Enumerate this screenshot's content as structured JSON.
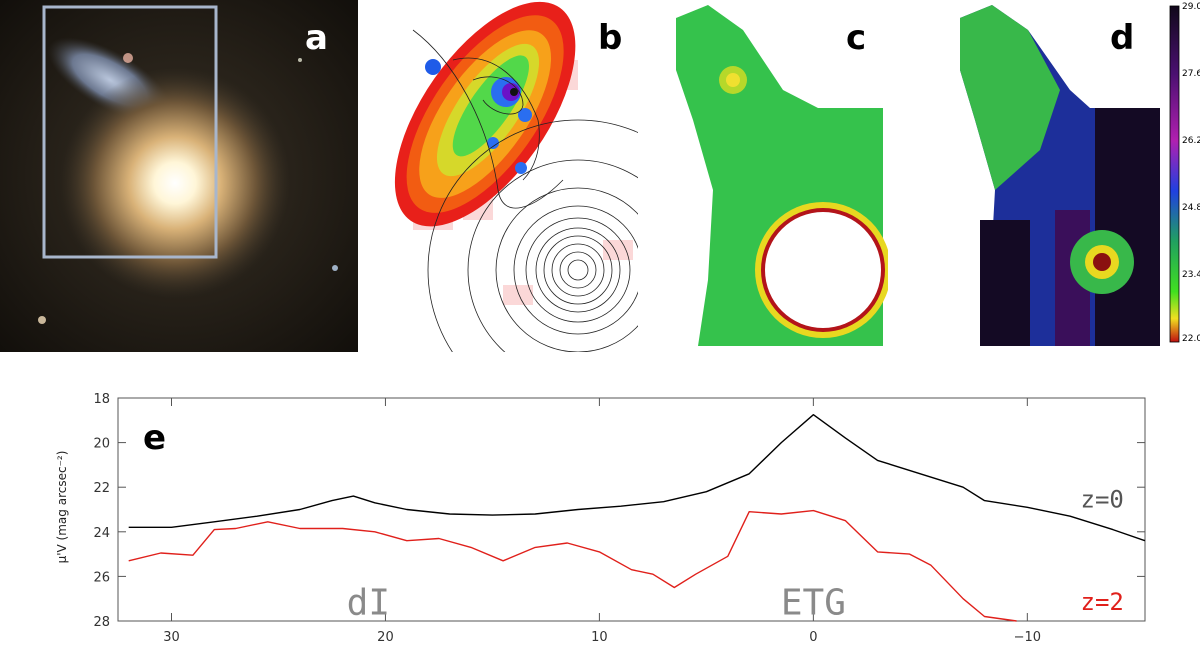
{
  "panels": {
    "a": {
      "letter": "a"
    },
    "b": {
      "letter": "b"
    },
    "c": {
      "letter": "c"
    },
    "d": {
      "letter": "d"
    }
  },
  "colorbar": {
    "ticks": [
      "29.0",
      "27.6",
      "26.2",
      "24.8",
      "23.4",
      "22.0"
    ],
    "range": [
      22.0,
      29.0
    ]
  },
  "colors": {
    "z0_line": "#000000",
    "z2_line": "#e0201b",
    "annotation": "#8a8a8a"
  },
  "chart_data": {
    "type": "line",
    "panel_letter": "e",
    "ylabel": "μ'V (mag arcsec⁻²)",
    "xlim": [
      32.5,
      -15.5
    ],
    "ylim": [
      28,
      18
    ],
    "x_ticks": [
      "30",
      "20",
      "10",
      "0",
      "−10"
    ],
    "x_tick_values": [
      30,
      20,
      10,
      0,
      -10
    ],
    "y_ticks": [
      "18",
      "20",
      "22",
      "24",
      "26",
      "28"
    ],
    "y_tick_values": [
      18,
      20,
      22,
      24,
      26,
      28
    ],
    "series": [
      {
        "name": "z=0",
        "x": [
          32,
          30,
          28,
          26,
          24,
          22.5,
          21.5,
          20.5,
          19,
          17,
          15,
          13,
          11,
          9,
          7,
          5,
          3,
          1.5,
          0,
          -1.5,
          -3,
          -5,
          -7,
          -8,
          -10,
          -12,
          -14,
          -15.5
        ],
        "y": [
          23.8,
          23.8,
          23.55,
          23.3,
          23.0,
          22.6,
          22.4,
          22.7,
          23.0,
          23.2,
          23.25,
          23.2,
          23.0,
          22.85,
          22.65,
          22.2,
          21.4,
          20.0,
          18.75,
          19.8,
          20.8,
          21.4,
          22.0,
          22.6,
          22.9,
          23.3,
          23.9,
          24.4
        ]
      },
      {
        "name": "z=2",
        "x": [
          32,
          30.5,
          29,
          28,
          27,
          25.5,
          24,
          22,
          20.5,
          19,
          17.5,
          16,
          14.5,
          13,
          11.5,
          10,
          8.5,
          7.5,
          6.5,
          5.5,
          4,
          3,
          1.5,
          0,
          -1.5,
          -3,
          -4.5,
          -5.5,
          -7,
          -8,
          -9.5
        ],
        "y": [
          25.3,
          24.95,
          25.05,
          23.9,
          23.85,
          23.55,
          23.85,
          23.85,
          24.0,
          24.4,
          24.3,
          24.7,
          25.3,
          24.7,
          24.5,
          24.9,
          25.7,
          25.9,
          26.5,
          25.9,
          25.1,
          23.1,
          23.2,
          23.05,
          23.5,
          24.9,
          25.0,
          25.5,
          27.0,
          27.8,
          28.0
        ]
      }
    ],
    "annotations": [
      {
        "text": "dI",
        "x": 20.8,
        "y": 27.7
      },
      {
        "text": "ETG",
        "x": 0,
        "y": 27.7
      },
      {
        "text": "z=0",
        "x": -13.5,
        "y": 22.9
      },
      {
        "text": "z=2",
        "x": -13.5,
        "y": 27.5
      }
    ]
  }
}
